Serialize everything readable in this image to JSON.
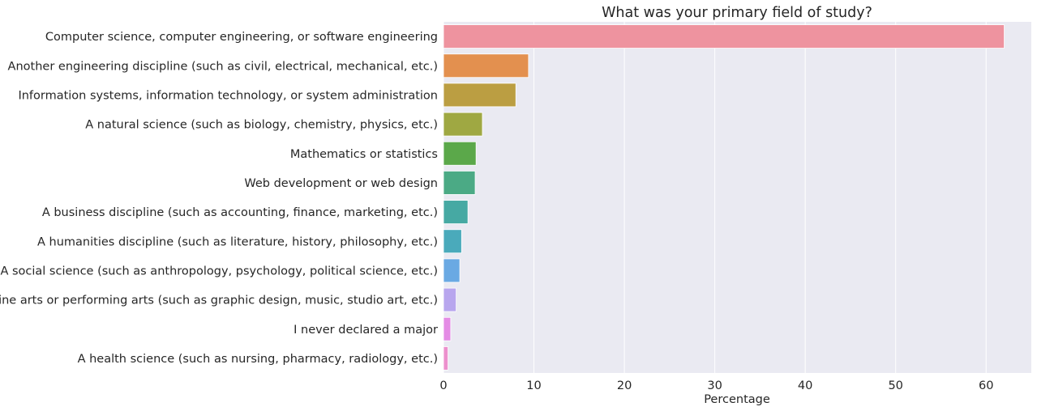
{
  "chart_data": {
    "type": "bar",
    "orientation": "horizontal",
    "title": "What was your primary field of study?",
    "xlabel": "Percentage",
    "ylabel": "",
    "xlim": [
      0,
      65
    ],
    "xticks": [
      "0",
      "10",
      "20",
      "30",
      "40",
      "50",
      "60"
    ],
    "grid": true,
    "background": "#eaeaf2",
    "categories": [
      "Computer science, computer engineering, or software engineering",
      "Another engineering discipline (such as civil, electrical, mechanical, etc.)",
      "Information systems, information technology, or system administration",
      "A natural science (such as biology, chemistry, physics, etc.)",
      "Mathematics or statistics",
      "Web development or web design",
      "A business discipline (such as accounting, finance, marketing, etc.)",
      "A humanities discipline (such as literature, history, philosophy, etc.)",
      "A social science (such as anthropology, psychology, political science, etc.)",
      "Fine arts or performing arts (such as graphic design, music, studio art, etc.)",
      "I never declared a major",
      "A health science (such as nursing, pharmacy, radiology, etc.)"
    ],
    "values": [
      62.0,
      9.4,
      8.0,
      4.3,
      3.6,
      3.5,
      2.7,
      2.0,
      1.8,
      1.4,
      0.8,
      0.5
    ],
    "colors": [
      "#ee939f",
      "#e3904f",
      "#bb9e42",
      "#9fa842",
      "#5ba84a",
      "#4baa85",
      "#46a9a3",
      "#4aaabb",
      "#6aa9e3",
      "#b8a6ee",
      "#e48ce5",
      "#ec90cd"
    ]
  }
}
